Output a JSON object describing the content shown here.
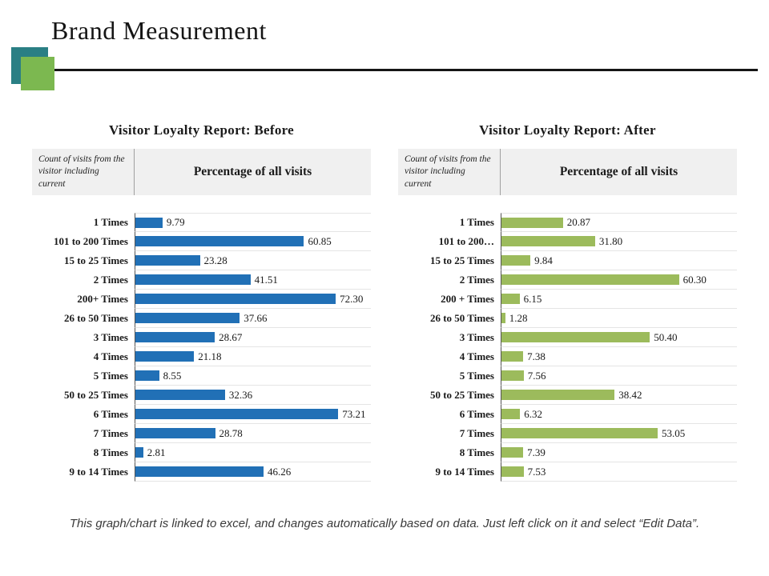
{
  "page": {
    "title": "Brand Measurement",
    "footer": "This graph/chart is linked to excel, and changes automatically based on data. Just left click on it and select “Edit Data”."
  },
  "decorations": {
    "teal_square_color": "#2A7F84",
    "green_square_color": "#7CB850",
    "divider_line_color": "#151515"
  },
  "chart_data": [
    {
      "type": "bar",
      "orientation": "horizontal",
      "title": "Visitor Loyalty Report: Before",
      "col1_header": "Count of visits from the visitor including current",
      "col2_header": "Percentage of all visits",
      "categories": [
        "1 Times",
        "101 to 200 Times",
        "15 to 25 Times",
        "2 Times",
        "200+ Times",
        "26 to 50 Times",
        "3 Times",
        "4 Times",
        "5 Times",
        "50 to 25 Times",
        "6 Times",
        "7 Times",
        "8 Times",
        "9 to 14 Times"
      ],
      "values": [
        9.79,
        60.85,
        23.28,
        41.51,
        72.3,
        37.66,
        28.67,
        21.18,
        8.55,
        32.36,
        73.21,
        28.78,
        2.81,
        46.26
      ],
      "bar_color": "#2170B6",
      "xlim": [
        0,
        85
      ],
      "grid": true,
      "legend": false
    },
    {
      "type": "bar",
      "orientation": "horizontal",
      "title": "Visitor Loyalty Report: After",
      "col1_header": "Count of visits from the visitor including current",
      "col2_header": "Percentage of all visits",
      "categories": [
        "1 Times",
        "101 to 200…",
        "15 to 25 Times",
        "2 Times",
        "200 + Times",
        "26 to 50 Times",
        "3 Times",
        "4 Times",
        "5 Times",
        "50 to 25 Times",
        "6 Times",
        "7 Times",
        "8 Times",
        "9 to 14 Times"
      ],
      "values": [
        20.87,
        31.8,
        9.84,
        60.3,
        6.15,
        1.28,
        50.4,
        7.38,
        7.56,
        38.42,
        6.32,
        53.05,
        7.39,
        7.53
      ],
      "bar_color": "#9CBB5C",
      "xlim": [
        0,
        80
      ],
      "grid": true,
      "legend": false
    }
  ]
}
